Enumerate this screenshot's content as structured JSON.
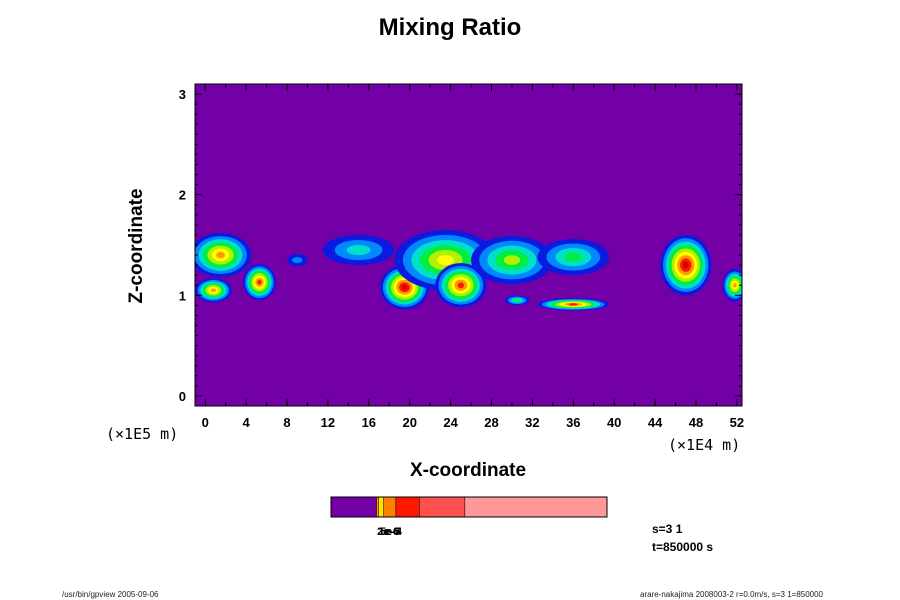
{
  "chart_data": {
    "type": "heatmap",
    "title": "Mixing Ratio",
    "xlabel": "X-coordinate",
    "ylabel": "Z-coordinate",
    "x_unit_label": "(×1E4 m)",
    "y_unit_label": "(×1E5 m)",
    "xlim": [
      -1,
      52.5
    ],
    "ylim": [
      -0.1,
      3.1
    ],
    "x_ticks": [
      "0",
      "4",
      "8",
      "12",
      "16",
      "20",
      "24",
      "28",
      "32",
      "36",
      "40",
      "44",
      "48",
      "52"
    ],
    "y_ticks": [
      "0",
      "1",
      "2",
      "3"
    ],
    "background_color": "#7300a6",
    "levels": [
      "#0a1ae0",
      "#0088ff",
      "#00e0c8",
      "#00ee40",
      "#b0f000",
      "#ffff00",
      "#ff9900",
      "#ff1800",
      "#c80000"
    ],
    "blobs": [
      {
        "cx": 1.5,
        "cz": 1.4,
        "rx": 3.0,
        "rz": 0.22,
        "peak": 7
      },
      {
        "cx": 0.8,
        "cz": 1.05,
        "rx": 1.8,
        "rz": 0.12,
        "peak": 7
      },
      {
        "cx": 5.3,
        "cz": 1.13,
        "rx": 1.6,
        "rz": 0.18,
        "peak": 8
      },
      {
        "cx": 9.0,
        "cz": 1.35,
        "rx": 1.0,
        "rz": 0.06,
        "peak": 2
      },
      {
        "cx": 15.0,
        "cz": 1.45,
        "rx": 3.5,
        "rz": 0.15,
        "peak": 3
      },
      {
        "cx": 19.5,
        "cz": 1.08,
        "rx": 2.4,
        "rz": 0.22,
        "peak": 9
      },
      {
        "cx": 23.5,
        "cz": 1.35,
        "rx": 5.0,
        "rz": 0.3,
        "peak": 6
      },
      {
        "cx": 25.0,
        "cz": 1.1,
        "rx": 2.5,
        "rz": 0.22,
        "peak": 8
      },
      {
        "cx": 30.0,
        "cz": 1.35,
        "rx": 4.0,
        "rz": 0.24,
        "peak": 5
      },
      {
        "cx": 36.0,
        "cz": 1.38,
        "rx": 3.5,
        "rz": 0.18,
        "peak": 4
      },
      {
        "cx": 30.5,
        "cz": 0.95,
        "rx": 1.2,
        "rz": 0.05,
        "peak": 4
      },
      {
        "cx": 36.0,
        "cz": 0.91,
        "rx": 3.5,
        "rz": 0.06,
        "peak": 8
      },
      {
        "cx": 47.0,
        "cz": 1.3,
        "rx": 2.5,
        "rz": 0.3,
        "peak": 9
      },
      {
        "cx": 51.8,
        "cz": 1.1,
        "rx": 1.2,
        "rz": 0.16,
        "peak": 7
      }
    ]
  },
  "colorbar": {
    "colors": [
      "#7300a6",
      "#ff9900",
      "#ffe000",
      "#ff8000",
      "#ff1800",
      "#ff5050",
      "#ff9999"
    ],
    "fractions": [
      0.165,
      0.008,
      0.018,
      0.044,
      0.085,
      0.165,
      0.515
    ],
    "labels": [
      "2e-6",
      "1e-5",
      "5e-4"
    ]
  },
  "info": {
    "step": "s=3 1",
    "time": "t=850000 s"
  },
  "footer": {
    "left": "/usr/bin/gpview 2005-09-06",
    "right": "arare-nakajima 2008003-2 r=0.0m/s, s=3 1=850000"
  }
}
